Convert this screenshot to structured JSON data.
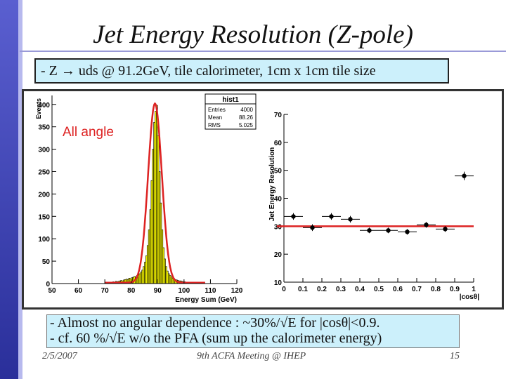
{
  "slide": {
    "title": "Jet Energy Resolution (Z-pole)",
    "subtitle": "- Z → uds @ 91.2GeV, tile calorimeter, 1cm x 1cm tile size",
    "notes": [
      "- Almost no angular dependence : ~30%/√E for |cosθ|<0.9.",
      "- cf. 60 %/√E w/o the PFA (sum up the calorimeter energy)"
    ],
    "footer": {
      "date": "2/5/2007",
      "event": "9th ACFA Meeting @ IHEP",
      "page": "15"
    }
  },
  "colors": {
    "accent": "#5a5fd0",
    "box_bg": "#ccf0fb",
    "hist_fill": "#ffff00",
    "fit_line": "#dd2222"
  },
  "chart_data": [
    {
      "type": "bar",
      "title": "hist1",
      "annotation": "All angle",
      "xlabel": "Energy Sum (GeV)",
      "ylabel": "Events",
      "xlim": [
        50,
        120
      ],
      "ylim": [
        0,
        420
      ],
      "xticks": [
        "50",
        "60",
        "70",
        "80",
        "90",
        "100",
        "110",
        "120"
      ],
      "yticks": [
        "0",
        "50",
        "100",
        "150",
        "200",
        "250",
        "300",
        "350",
        "400"
      ],
      "stats": [
        {
          "label": "Entries",
          "value": "4000"
        },
        {
          "label": "Mean",
          "value": "88.26"
        },
        {
          "label": "RMS",
          "value": "5.025"
        }
      ],
      "fit": {
        "type": "gaussian",
        "peak": 400,
        "mean": 89,
        "sigma": 2.6
      },
      "bin_width": 0.5,
      "x": [
        70,
        70.5,
        71,
        71.5,
        72,
        72.5,
        73,
        73.5,
        74,
        74.5,
        75,
        75.5,
        76,
        76.5,
        77,
        77.5,
        78,
        78.5,
        79,
        79.5,
        80,
        80.5,
        81,
        81.5,
        82,
        82.5,
        83,
        83.5,
        84,
        84.5,
        85,
        85.5,
        86,
        86.5,
        87,
        87.5,
        88,
        88.5,
        89,
        89.5,
        90,
        90.5,
        91,
        91.5,
        92,
        92.5,
        93,
        93.5,
        94,
        94.5,
        95,
        95.5,
        96,
        96.5,
        97,
        97.5,
        98,
        98.5,
        99,
        99.5,
        100,
        100.5,
        101,
        101.5,
        102,
        102.5,
        103,
        103.5,
        104,
        104.5
      ],
      "values": [
        2,
        1,
        3,
        2,
        2,
        3,
        4,
        3,
        5,
        4,
        5,
        6,
        7,
        6,
        8,
        9,
        10,
        9,
        12,
        11,
        13,
        14,
        16,
        15,
        18,
        20,
        22,
        26,
        30,
        38,
        48,
        62,
        85,
        120,
        165,
        230,
        300,
        360,
        385,
        398,
        330,
        250,
        180,
        120,
        80,
        55,
        38,
        28,
        22,
        18,
        15,
        12,
        11,
        9,
        8,
        7,
        6,
        6,
        5,
        4,
        4,
        3,
        3,
        2,
        3,
        2,
        1,
        2,
        1,
        1
      ]
    },
    {
      "type": "scatter",
      "xlabel": "|cosθ|",
      "ylabel": "Jet Energy Resolution",
      "xlim": [
        0,
        1
      ],
      "ylim": [
        10,
        70
      ],
      "xticks": [
        "0",
        "0.1",
        "0.2",
        "0.3",
        "0.4",
        "0.5",
        "0.6",
        "0.7",
        "0.8",
        "0.9",
        "1"
      ],
      "yticks": [
        "10",
        "20",
        "30",
        "40",
        "50",
        "60",
        "70"
      ],
      "x": [
        0.05,
        0.15,
        0.25,
        0.35,
        0.45,
        0.55,
        0.65,
        0.75,
        0.85,
        0.95
      ],
      "values": [
        33.5,
        29.5,
        33.5,
        32.5,
        28.5,
        28.5,
        28,
        30.5,
        29,
        48
      ],
      "errors": [
        1.2,
        1.2,
        1.2,
        1.2,
        1.0,
        1.0,
        1.0,
        1.0,
        1.0,
        1.5
      ],
      "fit": {
        "type": "constant",
        "value": 30
      }
    }
  ]
}
